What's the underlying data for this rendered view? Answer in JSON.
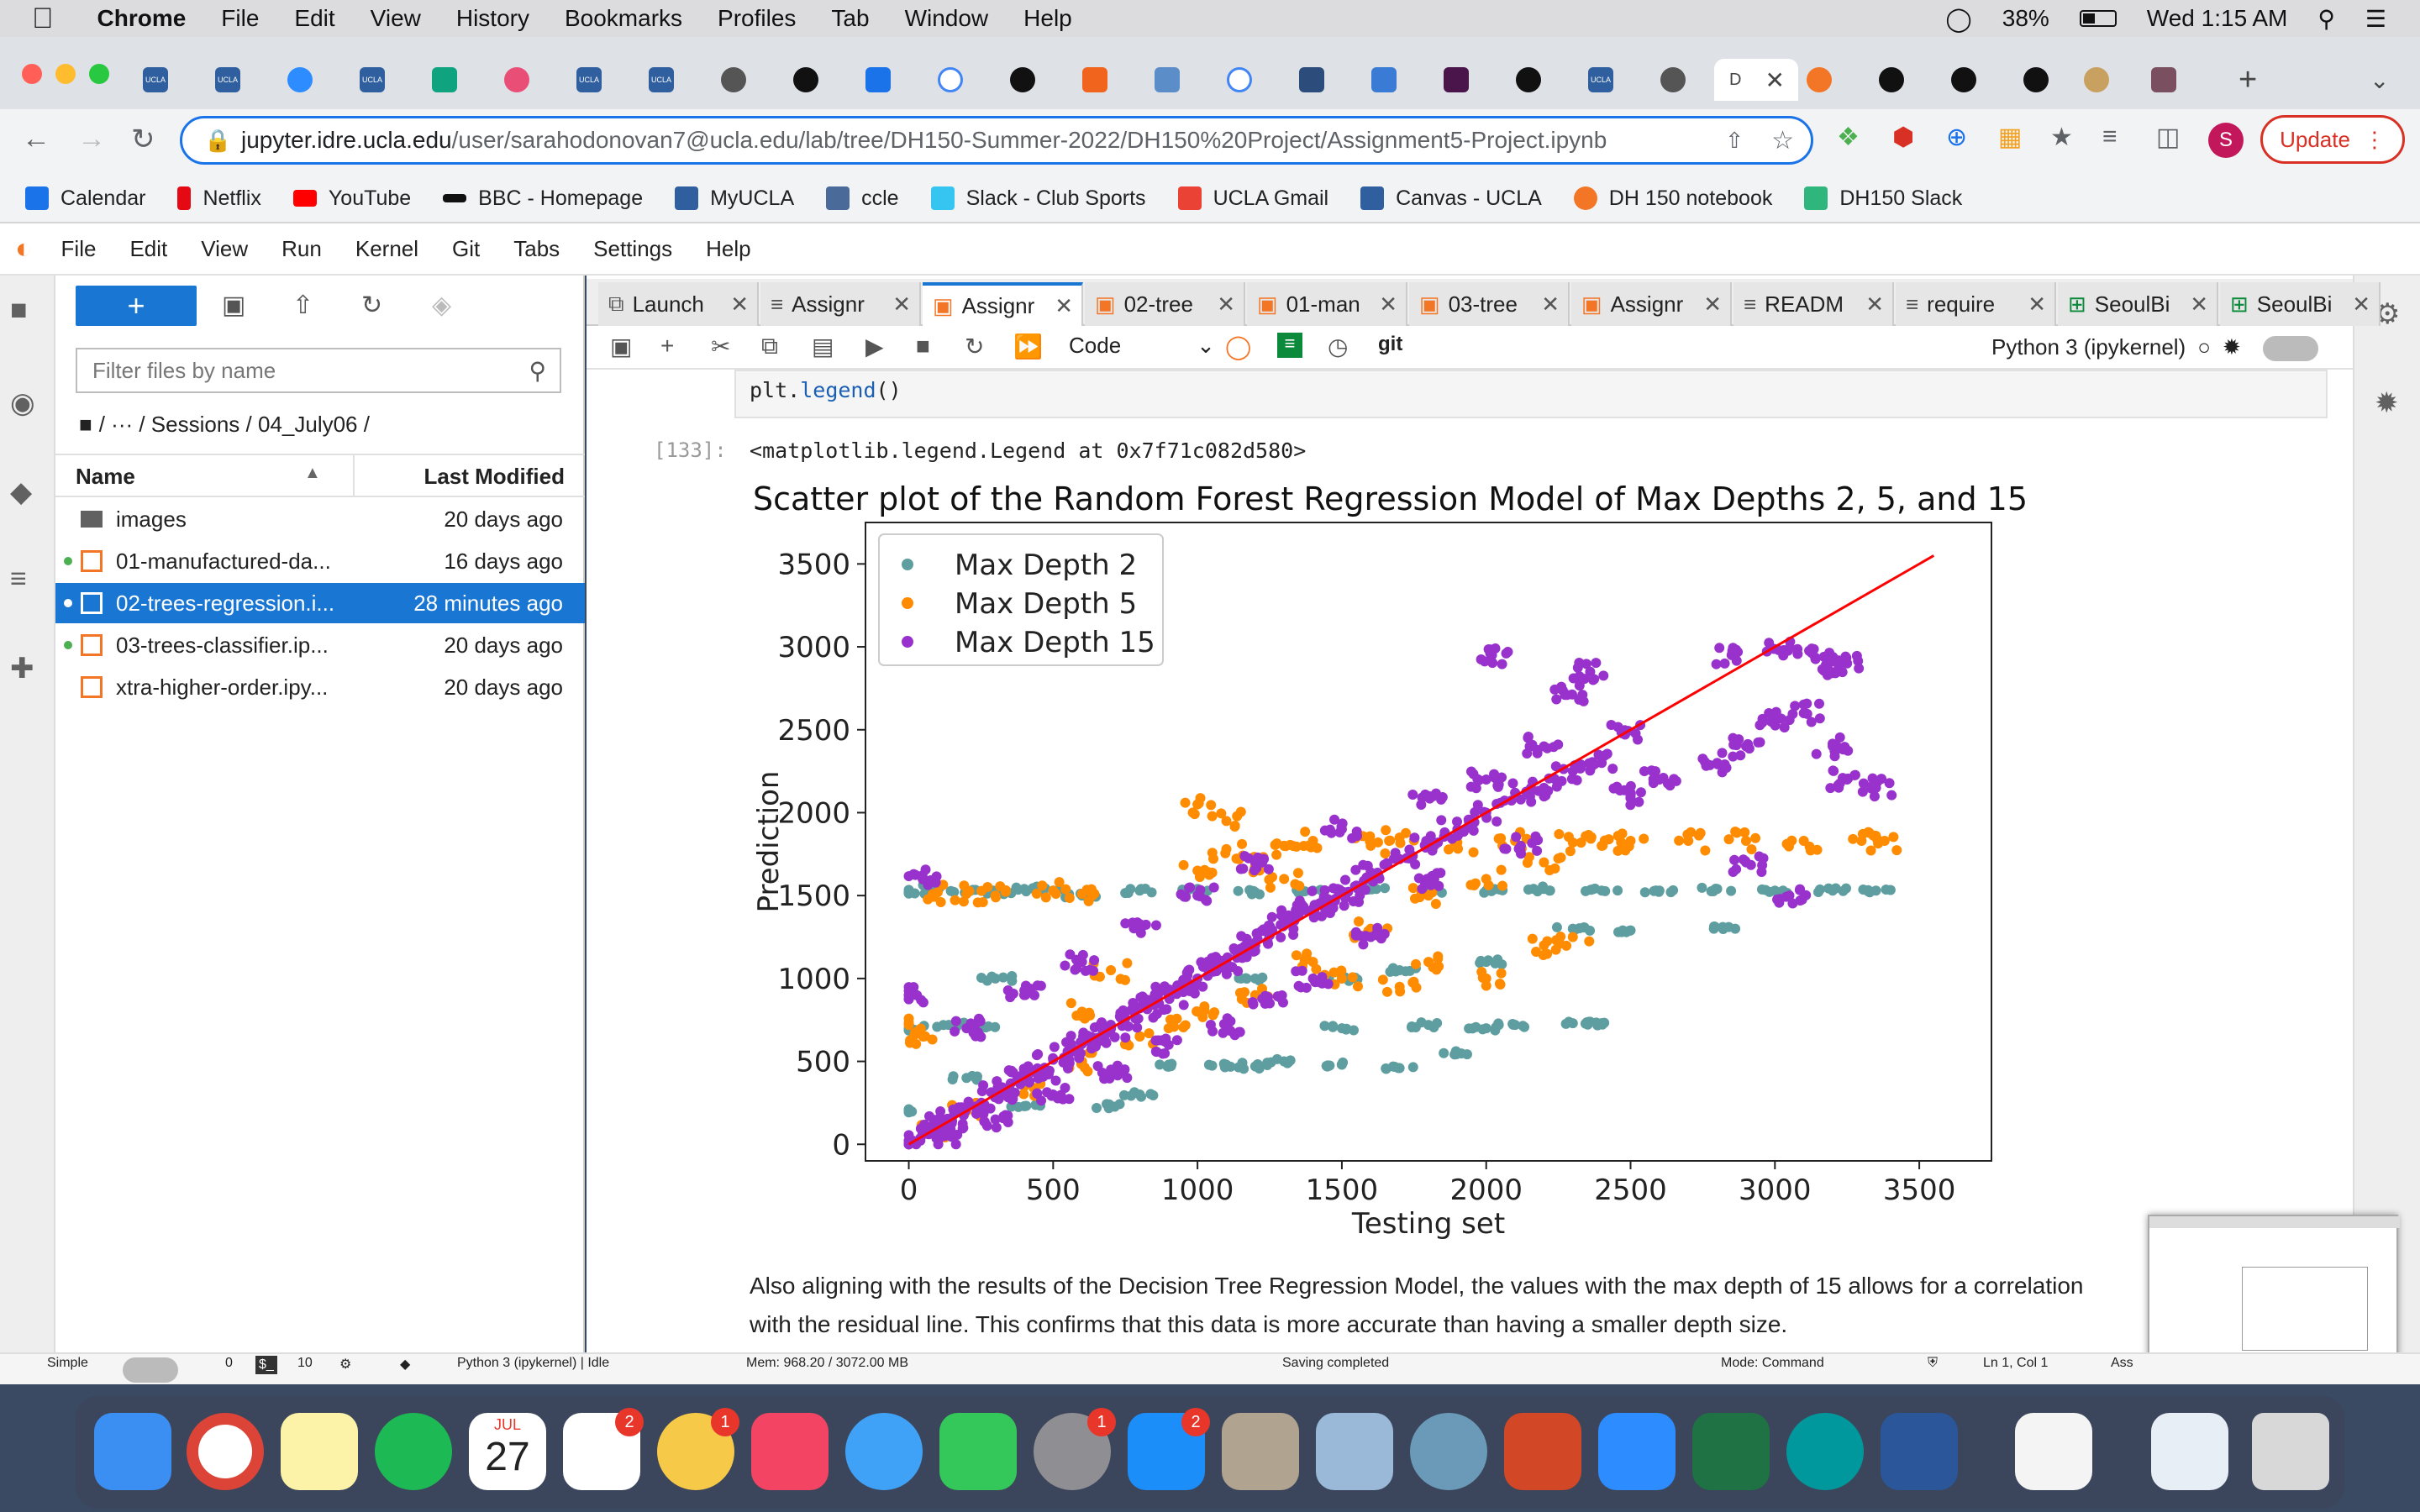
{
  "menubar": {
    "app": "Chrome",
    "items": [
      "File",
      "Edit",
      "View",
      "History",
      "Bookmarks",
      "Profiles",
      "Tab",
      "Window",
      "Help"
    ],
    "battery": "38%",
    "clock": "Wed 1:15 AM"
  },
  "browser": {
    "url_host": "jupyter.idre.ucla.edu",
    "url_path": "/user/sarahodonovan7@ucla.edu/lab/tree/DH150-Summer-2022/DH150%20Project/Assignment5-Project.ipynb",
    "update_label": "Update",
    "profile_letter": "S",
    "bookmarks": [
      "Calendar",
      "Netflix",
      "YouTube",
      "BBC - Homepage",
      "MyUCLA",
      "ccle",
      "Slack - Club Sports",
      "UCLA Gmail",
      "Canvas - UCLA",
      "DH 150 notebook",
      "DH150 Slack"
    ]
  },
  "jupyter": {
    "menu": [
      "File",
      "Edit",
      "View",
      "Run",
      "Kernel",
      "Git",
      "Tabs",
      "Settings",
      "Help"
    ],
    "filter_placeholder": "Filter files by name",
    "breadcrumb": "/   ···  / Sessions / 04_July06 /",
    "col_name": "Name",
    "col_modified": "Last Modified",
    "files": [
      {
        "name": "images",
        "modified": "20 days ago",
        "type": "folder",
        "running": false,
        "selected": false
      },
      {
        "name": "01-manufactured-da...",
        "modified": "16 days ago",
        "type": "notebook",
        "running": true,
        "selected": false
      },
      {
        "name": "02-trees-regression.i...",
        "modified": "28 minutes ago",
        "type": "notebook",
        "running": true,
        "selected": true
      },
      {
        "name": "03-trees-classifier.ip...",
        "modified": "20 days ago",
        "type": "notebook",
        "running": true,
        "selected": false
      },
      {
        "name": "xtra-higher-order.ipy...",
        "modified": "20 days ago",
        "type": "notebook",
        "running": false,
        "selected": false
      }
    ],
    "doc_tabs": [
      "Launch",
      "Assignr",
      "Assignr",
      "02-tree",
      "01-man",
      "03-tree",
      "Assignr",
      "READM",
      "require",
      "SeoulBi",
      "SeoulBi"
    ],
    "cell_type": "Code",
    "git_label": "git",
    "kernel": "Python 3 (ipykernel)",
    "code_line_1": "plt.",
    "code_line_2": "legend",
    "code_line_3": "()",
    "prompt": "[133]:",
    "output": "<matplotlib.legend.Legend at 0x7f71c082d580>",
    "markdown_1": "Also aligning with the results of the Decision Tree Regression Model, the values with the max depth of 15 allows for a correlation",
    "markdown_2": "with the residual line. This confirms that this data is more accurate than having a smaller depth size.",
    "status": {
      "mode_label": "Simple",
      "terminals": "0",
      "kernels": "10",
      "kernel_status": "Python 3 (ipykernel) | Idle",
      "memory": "Mem: 968.20 / 3072.00 MB",
      "saving": "Saving completed",
      "mode": "Mode: Command",
      "position": "Ln 1, Col 1",
      "notebook_short": "Ass"
    }
  },
  "dock": {
    "badges": [
      "2",
      "1",
      "1",
      "2"
    ],
    "calendar_month": "JUL",
    "calendar_day": "27"
  },
  "chart_data": {
    "type": "scatter",
    "title": "Scatter plot of the Random Forest Regression Model of Max Depths 2, 5, and 15",
    "xlabel": "Testing set",
    "ylabel": "Prediction",
    "xlim": [
      -150,
      3750
    ],
    "ylim": [
      -100,
      3750
    ],
    "xticks": [
      0,
      500,
      1000,
      1500,
      2000,
      2500,
      3000,
      3500
    ],
    "yticks": [
      0,
      500,
      1000,
      1500,
      2000,
      2500,
      3000,
      3500
    ],
    "legend_position": "top-left",
    "series": [
      {
        "name": "Max Depth 2",
        "color": "#5f9ea0",
        "pattern": "step levels at about 230, 480, 700, 1000, 1300, 1530 with max near 1530",
        "points": [
          [
            0,
            200
          ],
          [
            0,
            700
          ],
          [
            0,
            1520
          ],
          [
            100,
            1550
          ],
          [
            200,
            1530
          ],
          [
            300,
            1520
          ],
          [
            400,
            1540
          ],
          [
            500,
            1530
          ],
          [
            600,
            1500
          ],
          [
            800,
            1530
          ],
          [
            1000,
            1540
          ],
          [
            1200,
            1520
          ],
          [
            1400,
            1530
          ],
          [
            1600,
            1540
          ],
          [
            1800,
            1520
          ],
          [
            2000,
            1530
          ],
          [
            2200,
            1540
          ],
          [
            2400,
            1530
          ],
          [
            2600,
            1530
          ],
          [
            2800,
            1540
          ],
          [
            3000,
            1530
          ],
          [
            3200,
            1530
          ],
          [
            3350,
            1530
          ],
          [
            400,
            230
          ],
          [
            700,
            230
          ],
          [
            800,
            300
          ],
          [
            900,
            480
          ],
          [
            1100,
            480
          ],
          [
            1200,
            470
          ],
          [
            1300,
            500
          ],
          [
            1500,
            480
          ],
          [
            1700,
            460
          ],
          [
            1900,
            550
          ],
          [
            2000,
            700
          ],
          [
            2100,
            720
          ],
          [
            2300,
            730
          ],
          [
            2400,
            730
          ],
          [
            1500,
            700
          ],
          [
            1800,
            720
          ],
          [
            1200,
            1000
          ],
          [
            1500,
            1000
          ],
          [
            1700,
            1050
          ],
          [
            2000,
            1100
          ],
          [
            2300,
            1300
          ],
          [
            2500,
            1290
          ],
          [
            2840,
            1310
          ],
          [
            150,
            720
          ],
          [
            250,
            700
          ],
          [
            300,
            1000
          ],
          [
            200,
            400
          ]
        ]
      },
      {
        "name": "Max Depth 5",
        "color": "#ff8c00",
        "pattern": "levels up to about 1830",
        "points": [
          [
            0,
            720
          ],
          [
            50,
            650
          ],
          [
            100,
            1520
          ],
          [
            200,
            1510
          ],
          [
            300,
            1500
          ],
          [
            500,
            1530
          ],
          [
            600,
            1510
          ],
          [
            1000,
            1650
          ],
          [
            1200,
            1680
          ],
          [
            1100,
            1780
          ],
          [
            1300,
            1800
          ],
          [
            1400,
            1830
          ],
          [
            1600,
            1800
          ],
          [
            1700,
            1850
          ],
          [
            1900,
            1820
          ],
          [
            2100,
            1830
          ],
          [
            2300,
            1820
          ],
          [
            2500,
            1830
          ],
          [
            2700,
            1830
          ],
          [
            2900,
            1830
          ],
          [
            3100,
            1830
          ],
          [
            3300,
            1830
          ],
          [
            3380,
            1830
          ],
          [
            1100,
            1950
          ],
          [
            1000,
            2050
          ],
          [
            1300,
            1600
          ],
          [
            1500,
            1000
          ],
          [
            1700,
            950
          ],
          [
            1800,
            1100
          ],
          [
            2000,
            1000
          ],
          [
            2200,
            1200
          ],
          [
            2300,
            1250
          ],
          [
            2400,
            1800
          ],
          [
            1000,
            800
          ],
          [
            800,
            650
          ],
          [
            600,
            500
          ],
          [
            400,
            350
          ],
          [
            200,
            200
          ],
          [
            100,
            100
          ],
          [
            900,
            700
          ],
          [
            1200,
            900
          ],
          [
            1400,
            1100
          ],
          [
            1600,
            1300
          ],
          [
            1800,
            1500
          ],
          [
            2000,
            1600
          ],
          [
            2200,
            1700
          ],
          [
            700,
            1050
          ],
          [
            600,
            800
          ]
        ]
      },
      {
        "name": "Max Depth 15",
        "color": "#9932cc",
        "pattern": "dense along the diagonal",
        "points": [
          [
            0,
            0
          ],
          [
            50,
            60
          ],
          [
            100,
            120
          ],
          [
            150,
            140
          ],
          [
            200,
            220
          ],
          [
            250,
            240
          ],
          [
            300,
            310
          ],
          [
            350,
            330
          ],
          [
            400,
            420
          ],
          [
            450,
            440
          ],
          [
            500,
            510
          ],
          [
            550,
            560
          ],
          [
            600,
            620
          ],
          [
            650,
            640
          ],
          [
            700,
            700
          ],
          [
            750,
            760
          ],
          [
            800,
            820
          ],
          [
            850,
            840
          ],
          [
            900,
            900
          ],
          [
            950,
            960
          ],
          [
            1000,
            1000
          ],
          [
            1050,
            1080
          ],
          [
            1100,
            1100
          ],
          [
            1150,
            1180
          ],
          [
            1200,
            1200
          ],
          [
            1250,
            1260
          ],
          [
            1300,
            1320
          ],
          [
            1350,
            1380
          ],
          [
            1400,
            1420
          ],
          [
            1450,
            1480
          ],
          [
            1500,
            1520
          ],
          [
            1550,
            1560
          ],
          [
            1600,
            1640
          ],
          [
            1700,
            1720
          ],
          [
            1800,
            1820
          ],
          [
            1900,
            1900
          ],
          [
            2000,
            2000
          ],
          [
            2100,
            2120
          ],
          [
            2200,
            2150
          ],
          [
            2300,
            2250
          ],
          [
            2400,
            2300
          ],
          [
            2500,
            2100
          ],
          [
            2600,
            2200
          ],
          [
            2800,
            2300
          ],
          [
            2900,
            2400
          ],
          [
            3000,
            2550
          ],
          [
            3100,
            2600
          ],
          [
            3200,
            2400
          ],
          [
            3250,
            2200
          ],
          [
            3350,
            2150
          ],
          [
            2020,
            2950
          ],
          [
            2280,
            2710
          ],
          [
            2360,
            2850
          ],
          [
            2480,
            2480
          ],
          [
            2850,
            2950
          ],
          [
            3030,
            2980
          ],
          [
            3170,
            2940
          ],
          [
            3180,
            2880
          ],
          [
            3250,
            2900
          ],
          [
            2120,
            1800
          ],
          [
            1820,
            1600
          ],
          [
            1600,
            1250
          ],
          [
            1400,
            1000
          ],
          [
            1250,
            850
          ],
          [
            1100,
            700
          ],
          [
            900,
            600
          ],
          [
            700,
            450
          ],
          [
            500,
            300
          ],
          [
            300,
            150
          ],
          [
            150,
            50
          ],
          [
            50,
            1600
          ],
          [
            0,
            900
          ],
          [
            200,
            700
          ],
          [
            400,
            900
          ],
          [
            600,
            1100
          ],
          [
            800,
            1300
          ],
          [
            1000,
            1500
          ],
          [
            1200,
            1700
          ],
          [
            1500,
            1900
          ],
          [
            1800,
            2100
          ],
          [
            2000,
            2200
          ],
          [
            2200,
            2400
          ],
          [
            3050,
            1500
          ],
          [
            2900,
            1700
          ]
        ]
      }
    ],
    "reference_line": {
      "color": "#ff0000",
      "from": [
        0,
        0
      ],
      "to": [
        3550,
        3550
      ]
    }
  }
}
